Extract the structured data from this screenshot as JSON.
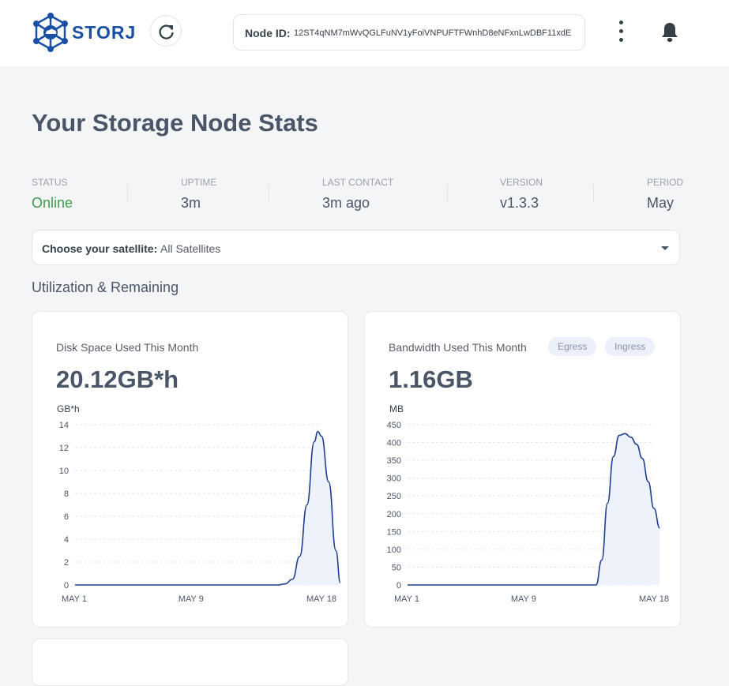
{
  "header": {
    "logo_text": "STORJ",
    "node_id_label": "Node ID:",
    "node_id_value": "12ST4qNM7mWvQGLFuNV1yFoiVNPUFTFWnhD8eNFxnLwDBF11xdE"
  },
  "page_title": "Your Storage Node Stats",
  "stats": {
    "status_label": "STATUS",
    "status_value": "Online",
    "uptime_label": "UPTIME",
    "uptime_value": "3m",
    "last_contact_label": "LAST CONTACT",
    "last_contact_value": "3m ago",
    "version_label": "VERSION",
    "version_value": "v1.3.3",
    "period_label": "PERIOD",
    "period_value": "May"
  },
  "satellite": {
    "label": "Choose your satellite:",
    "value": "All Satellites"
  },
  "section_title": "Utilization & Remaining",
  "colors": {
    "line": "#1f3f8f",
    "fill": "#eef2fb",
    "online": "#3c9a48",
    "brand": "#1a4fa6"
  },
  "disk_card": {
    "title": "Disk Space Used This Month",
    "total": "20.12GB*h",
    "unit": "GB*h"
  },
  "bandwidth_card": {
    "title": "Bandwidth Used This Month",
    "total": "1.16GB",
    "unit": "MB",
    "egress_label": "Egress",
    "ingress_label": "Ingress"
  },
  "chart_data": [
    {
      "type": "area",
      "title": "Disk Space Used This Month",
      "ylabel": "GB*h",
      "x_ticks": [
        "MAY 1",
        "MAY 9",
        "MAY 18"
      ],
      "y_ticks": [
        0,
        2,
        4,
        6,
        8,
        10,
        12,
        14
      ],
      "ylim": [
        0,
        14
      ],
      "x": [
        1,
        15,
        15.5,
        16,
        16.5,
        17,
        17.5,
        17.75,
        18,
        18.5,
        19,
        19.3
      ],
      "values": [
        0,
        0,
        0.1,
        0.5,
        2.5,
        7,
        12.5,
        13.4,
        13,
        9,
        3,
        0.2
      ]
    },
    {
      "type": "area",
      "title": "Bandwidth Used This Month",
      "ylabel": "MB",
      "series_labels": [
        "Egress",
        "Ingress"
      ],
      "x_ticks": [
        "MAY 1",
        "MAY 9",
        "MAY 18"
      ],
      "y_ticks": [
        0,
        50,
        100,
        150,
        200,
        250,
        300,
        350,
        400,
        450
      ],
      "ylim": [
        0,
        450
      ],
      "x": [
        1,
        14,
        14.4,
        14.8,
        15.2,
        15.6,
        16,
        16.4,
        16.8,
        17.2,
        17.6,
        18,
        18.4
      ],
      "values": [
        0,
        0,
        70,
        230,
        360,
        420,
        425,
        415,
        395,
        355,
        290,
        215,
        160
      ]
    }
  ]
}
